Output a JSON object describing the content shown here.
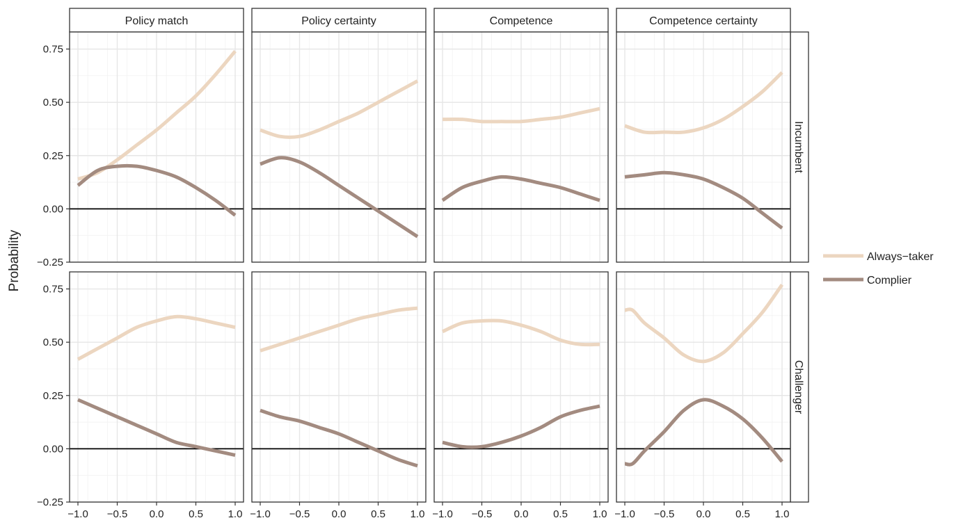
{
  "chart_data": {
    "type": "line",
    "ylabel": "Probability",
    "xlabel": "",
    "xlim": [
      -1.0,
      1.0
    ],
    "ylim": [
      -0.25,
      0.83
    ],
    "x_ticks": [
      -1.0,
      -0.5,
      0.0,
      0.5,
      1.0
    ],
    "x_tick_labels": [
      "−1.0",
      "−0.5",
      "0.0",
      "0.5",
      "1.0"
    ],
    "y_ticks": [
      -0.25,
      0.0,
      0.25,
      0.5,
      0.75
    ],
    "y_tick_labels": [
      "−0.25",
      "0.00",
      "0.25",
      "0.50",
      "0.75"
    ],
    "reference_line_y": 0,
    "grid": true,
    "legend_position": "right",
    "legend": [
      {
        "name": "Always−taker",
        "color": "#ecd6c0"
      },
      {
        "name": "Complier",
        "color": "#a38b80"
      }
    ],
    "columns": [
      "Policy match",
      "Policy certainty",
      "Competence",
      "Competence certainty"
    ],
    "rows": [
      "Incumbent",
      "Challenger"
    ],
    "panels": [
      {
        "row": "Incumbent",
        "column": "Policy match",
        "series": [
          {
            "name": "Always−taker",
            "x": [
              -1,
              -0.75,
              -0.5,
              -0.25,
              0,
              0.25,
              0.5,
              0.75,
              1
            ],
            "y": [
              0.14,
              0.17,
              0.23,
              0.3,
              0.37,
              0.45,
              0.53,
              0.63,
              0.74
            ]
          },
          {
            "name": "Complier",
            "x": [
              -1,
              -0.75,
              -0.5,
              -0.25,
              0,
              0.25,
              0.5,
              0.75,
              1
            ],
            "y": [
              0.11,
              0.18,
              0.2,
              0.2,
              0.18,
              0.15,
              0.1,
              0.04,
              -0.03
            ]
          }
        ]
      },
      {
        "row": "Incumbent",
        "column": "Policy certainty",
        "series": [
          {
            "name": "Always−taker",
            "x": [
              -1,
              -0.75,
              -0.5,
              -0.25,
              0,
              0.25,
              0.5,
              0.75,
              1
            ],
            "y": [
              0.37,
              0.34,
              0.34,
              0.37,
              0.41,
              0.45,
              0.5,
              0.55,
              0.6
            ]
          },
          {
            "name": "Complier",
            "x": [
              -1,
              -0.75,
              -0.5,
              -0.25,
              0,
              0.25,
              0.5,
              0.75,
              1
            ],
            "y": [
              0.21,
              0.24,
              0.22,
              0.17,
              0.11,
              0.05,
              -0.01,
              -0.07,
              -0.13
            ]
          }
        ]
      },
      {
        "row": "Incumbent",
        "column": "Competence",
        "series": [
          {
            "name": "Always−taker",
            "x": [
              -1,
              -0.75,
              -0.5,
              -0.25,
              0,
              0.25,
              0.5,
              0.75,
              1
            ],
            "y": [
              0.42,
              0.42,
              0.41,
              0.41,
              0.41,
              0.42,
              0.43,
              0.45,
              0.47
            ]
          },
          {
            "name": "Complier",
            "x": [
              -1,
              -0.75,
              -0.5,
              -0.25,
              0,
              0.25,
              0.5,
              0.75,
              1
            ],
            "y": [
              0.04,
              0.1,
              0.13,
              0.15,
              0.14,
              0.12,
              0.1,
              0.07,
              0.04
            ]
          }
        ]
      },
      {
        "row": "Incumbent",
        "column": "Competence certainty",
        "series": [
          {
            "name": "Always−taker",
            "x": [
              -1,
              -0.75,
              -0.5,
              -0.25,
              0,
              0.25,
              0.5,
              0.75,
              1
            ],
            "y": [
              0.39,
              0.36,
              0.36,
              0.36,
              0.38,
              0.42,
              0.48,
              0.55,
              0.64
            ]
          },
          {
            "name": "Complier",
            "x": [
              -1,
              -0.75,
              -0.5,
              -0.25,
              0,
              0.25,
              0.5,
              0.75,
              1
            ],
            "y": [
              0.15,
              0.16,
              0.17,
              0.16,
              0.14,
              0.1,
              0.05,
              -0.02,
              -0.09
            ]
          }
        ]
      },
      {
        "row": "Challenger",
        "column": "Policy match",
        "series": [
          {
            "name": "Always−taker",
            "x": [
              -1,
              -0.75,
              -0.5,
              -0.25,
              0,
              0.25,
              0.5,
              0.75,
              1
            ],
            "y": [
              0.42,
              0.47,
              0.52,
              0.57,
              0.6,
              0.62,
              0.61,
              0.59,
              0.57
            ]
          },
          {
            "name": "Complier",
            "x": [
              -1,
              -0.75,
              -0.5,
              -0.25,
              0,
              0.25,
              0.5,
              0.75,
              1
            ],
            "y": [
              0.23,
              0.19,
              0.15,
              0.11,
              0.07,
              0.03,
              0.01,
              -0.01,
              -0.03
            ]
          }
        ]
      },
      {
        "row": "Challenger",
        "column": "Policy certainty",
        "series": [
          {
            "name": "Always−taker",
            "x": [
              -1,
              -0.75,
              -0.5,
              -0.25,
              0,
              0.25,
              0.5,
              0.75,
              1
            ],
            "y": [
              0.46,
              0.49,
              0.52,
              0.55,
              0.58,
              0.61,
              0.63,
              0.65,
              0.66
            ]
          },
          {
            "name": "Complier",
            "x": [
              -1,
              -0.75,
              -0.5,
              -0.25,
              0,
              0.25,
              0.5,
              0.75,
              1
            ],
            "y": [
              0.18,
              0.15,
              0.13,
              0.1,
              0.07,
              0.03,
              -0.01,
              -0.05,
              -0.08
            ]
          }
        ]
      },
      {
        "row": "Challenger",
        "column": "Competence",
        "series": [
          {
            "name": "Always−taker",
            "x": [
              -1,
              -0.75,
              -0.5,
              -0.25,
              0,
              0.25,
              0.5,
              0.75,
              1
            ],
            "y": [
              0.55,
              0.59,
              0.6,
              0.6,
              0.58,
              0.55,
              0.51,
              0.49,
              0.49
            ]
          },
          {
            "name": "Complier",
            "x": [
              -1,
              -0.75,
              -0.5,
              -0.25,
              0,
              0.25,
              0.5,
              0.75,
              1
            ],
            "y": [
              0.03,
              0.01,
              0.01,
              0.03,
              0.06,
              0.1,
              0.15,
              0.18,
              0.2
            ]
          }
        ]
      },
      {
        "row": "Challenger",
        "column": "Competence certainty",
        "series": [
          {
            "name": "Always−taker",
            "x": [
              -1,
              -0.9,
              -0.75,
              -0.5,
              -0.25,
              0,
              0.25,
              0.5,
              0.75,
              1
            ],
            "y": [
              0.65,
              0.65,
              0.59,
              0.52,
              0.44,
              0.41,
              0.45,
              0.54,
              0.64,
              0.77
            ]
          },
          {
            "name": "Complier",
            "x": [
              -1,
              -0.9,
              -0.75,
              -0.5,
              -0.25,
              0,
              0.25,
              0.5,
              0.75,
              1
            ],
            "y": [
              -0.07,
              -0.07,
              -0.01,
              0.08,
              0.18,
              0.23,
              0.2,
              0.14,
              0.05,
              -0.06
            ]
          }
        ]
      }
    ]
  }
}
